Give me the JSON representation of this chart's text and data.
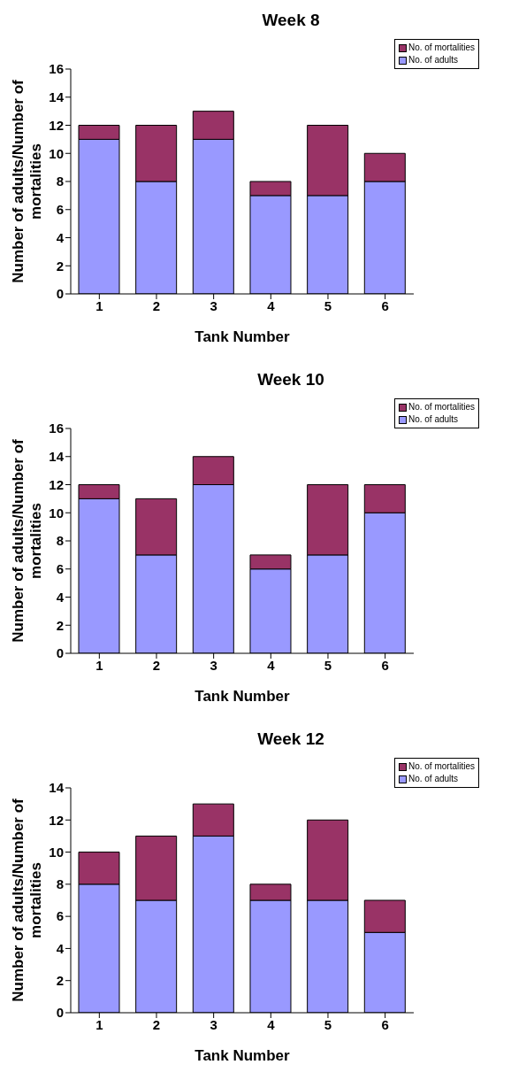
{
  "chart_data": [
    {
      "type": "bar",
      "title": "Week 8",
      "xlabel": "Tank Number",
      "ylabel": "Number of adults/Number of mortalities",
      "categories": [
        "1",
        "2",
        "3",
        "4",
        "5",
        "6"
      ],
      "stacked": true,
      "legend": "top right",
      "grid": false,
      "ylim": [
        0,
        16
      ],
      "yticks": [
        0,
        2,
        4,
        6,
        8,
        10,
        12,
        14,
        16
      ],
      "series": [
        {
          "name": "No. of adults",
          "color": "#9999ff",
          "values": [
            11,
            8,
            11,
            7,
            7,
            8
          ]
        },
        {
          "name": "No. of mortalities",
          "color": "#993366",
          "values": [
            1,
            4,
            2,
            1,
            5,
            2
          ]
        }
      ]
    },
    {
      "type": "bar",
      "title": "Week 10",
      "xlabel": "Tank Number",
      "ylabel": "Number of adults/Number of mortalities",
      "categories": [
        "1",
        "2",
        "3",
        "4",
        "5",
        "6"
      ],
      "stacked": true,
      "legend": "top right",
      "grid": false,
      "ylim": [
        0,
        16
      ],
      "yticks": [
        0,
        2,
        4,
        6,
        8,
        10,
        12,
        14,
        16
      ],
      "series": [
        {
          "name": "No. of adults",
          "color": "#9999ff",
          "values": [
            11,
            7,
            12,
            6,
            7,
            10
          ]
        },
        {
          "name": "No. of mortalities",
          "color": "#993366",
          "values": [
            1,
            4,
            2,
            1,
            5,
            2
          ]
        }
      ]
    },
    {
      "type": "bar",
      "title": "Week 12",
      "xlabel": "Tank Number",
      "ylabel": "Number of adults/Number of mortalities",
      "categories": [
        "1",
        "2",
        "3",
        "4",
        "5",
        "6"
      ],
      "stacked": true,
      "legend": "top right",
      "grid": false,
      "ylim": [
        0,
        14
      ],
      "yticks": [
        0,
        2,
        4,
        6,
        8,
        10,
        12,
        14
      ],
      "series": [
        {
          "name": "No. of adults",
          "color": "#9999ff",
          "values": [
            8,
            7,
            11,
            7,
            7,
            5
          ]
        },
        {
          "name": "No. of mortalities",
          "color": "#993366",
          "values": [
            2,
            4,
            2,
            1,
            5,
            2
          ]
        }
      ]
    }
  ]
}
